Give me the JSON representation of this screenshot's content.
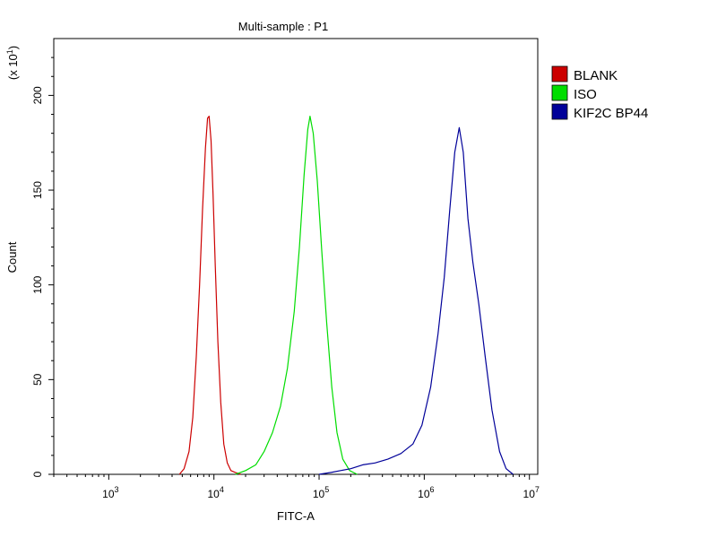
{
  "chart_data": {
    "type": "line",
    "title": "Multi-sample : P1",
    "xlabel": "FITC-A",
    "ylabel": "Count",
    "y_multiplier_label": "(x 10",
    "y_multiplier_exp": "1",
    "y_multiplier_close": ")",
    "x_scale": "log",
    "xlim": [
      300,
      12000000
    ],
    "ylim": [
      0,
      230
    ],
    "x_ticks": [
      {
        "value": 1000,
        "base": "10",
        "exp": "3"
      },
      {
        "value": 10000,
        "base": "10",
        "exp": "4"
      },
      {
        "value": 100000,
        "base": "10",
        "exp": "5"
      },
      {
        "value": 1000000,
        "base": "10",
        "exp": "6"
      },
      {
        "value": 10000000,
        "base": "10",
        "exp": "7"
      }
    ],
    "y_ticks": [
      0,
      50,
      100,
      150,
      200
    ],
    "grid": false,
    "legend_position": "right",
    "series": [
      {
        "name": "BLANK",
        "color": "#cc0000",
        "x": [
          4700,
          5200,
          5800,
          6300,
          6800,
          7300,
          7800,
          8300,
          8700,
          9000,
          9400,
          9800,
          10300,
          10900,
          11600,
          12400,
          13400,
          14500,
          16000,
          18000
        ],
        "y": [
          0,
          3,
          12,
          30,
          62,
          100,
          140,
          172,
          188,
          189,
          176,
          148,
          110,
          70,
          38,
          16,
          6,
          2,
          1,
          0
        ]
      },
      {
        "name": "ISO",
        "color": "#00dd00",
        "x": [
          16000,
          20000,
          25000,
          30000,
          36000,
          43000,
          50000,
          58000,
          65000,
          72000,
          78000,
          82000,
          88000,
          96000,
          106000,
          118000,
          132000,
          148000,
          168000,
          195000,
          230000
        ],
        "y": [
          0,
          2,
          5,
          12,
          22,
          36,
          56,
          86,
          120,
          158,
          182,
          189,
          180,
          155,
          118,
          80,
          46,
          22,
          8,
          2,
          0
        ]
      },
      {
        "name": "KIF2C BP44",
        "color": "#000099",
        "x": [
          100000,
          130000,
          160000,
          200000,
          260000,
          340000,
          450000,
          600000,
          780000,
          950000,
          1150000,
          1350000,
          1550000,
          1750000,
          1950000,
          2150000,
          2350000,
          2600000,
          2900000,
          3300000,
          3800000,
          4400000,
          5200000,
          6000000,
          7000000
        ],
        "y": [
          0,
          1,
          2,
          3,
          5,
          6,
          8,
          11,
          16,
          26,
          46,
          74,
          104,
          140,
          170,
          183,
          170,
          135,
          112,
          90,
          62,
          34,
          12,
          3,
          0
        ]
      }
    ]
  }
}
